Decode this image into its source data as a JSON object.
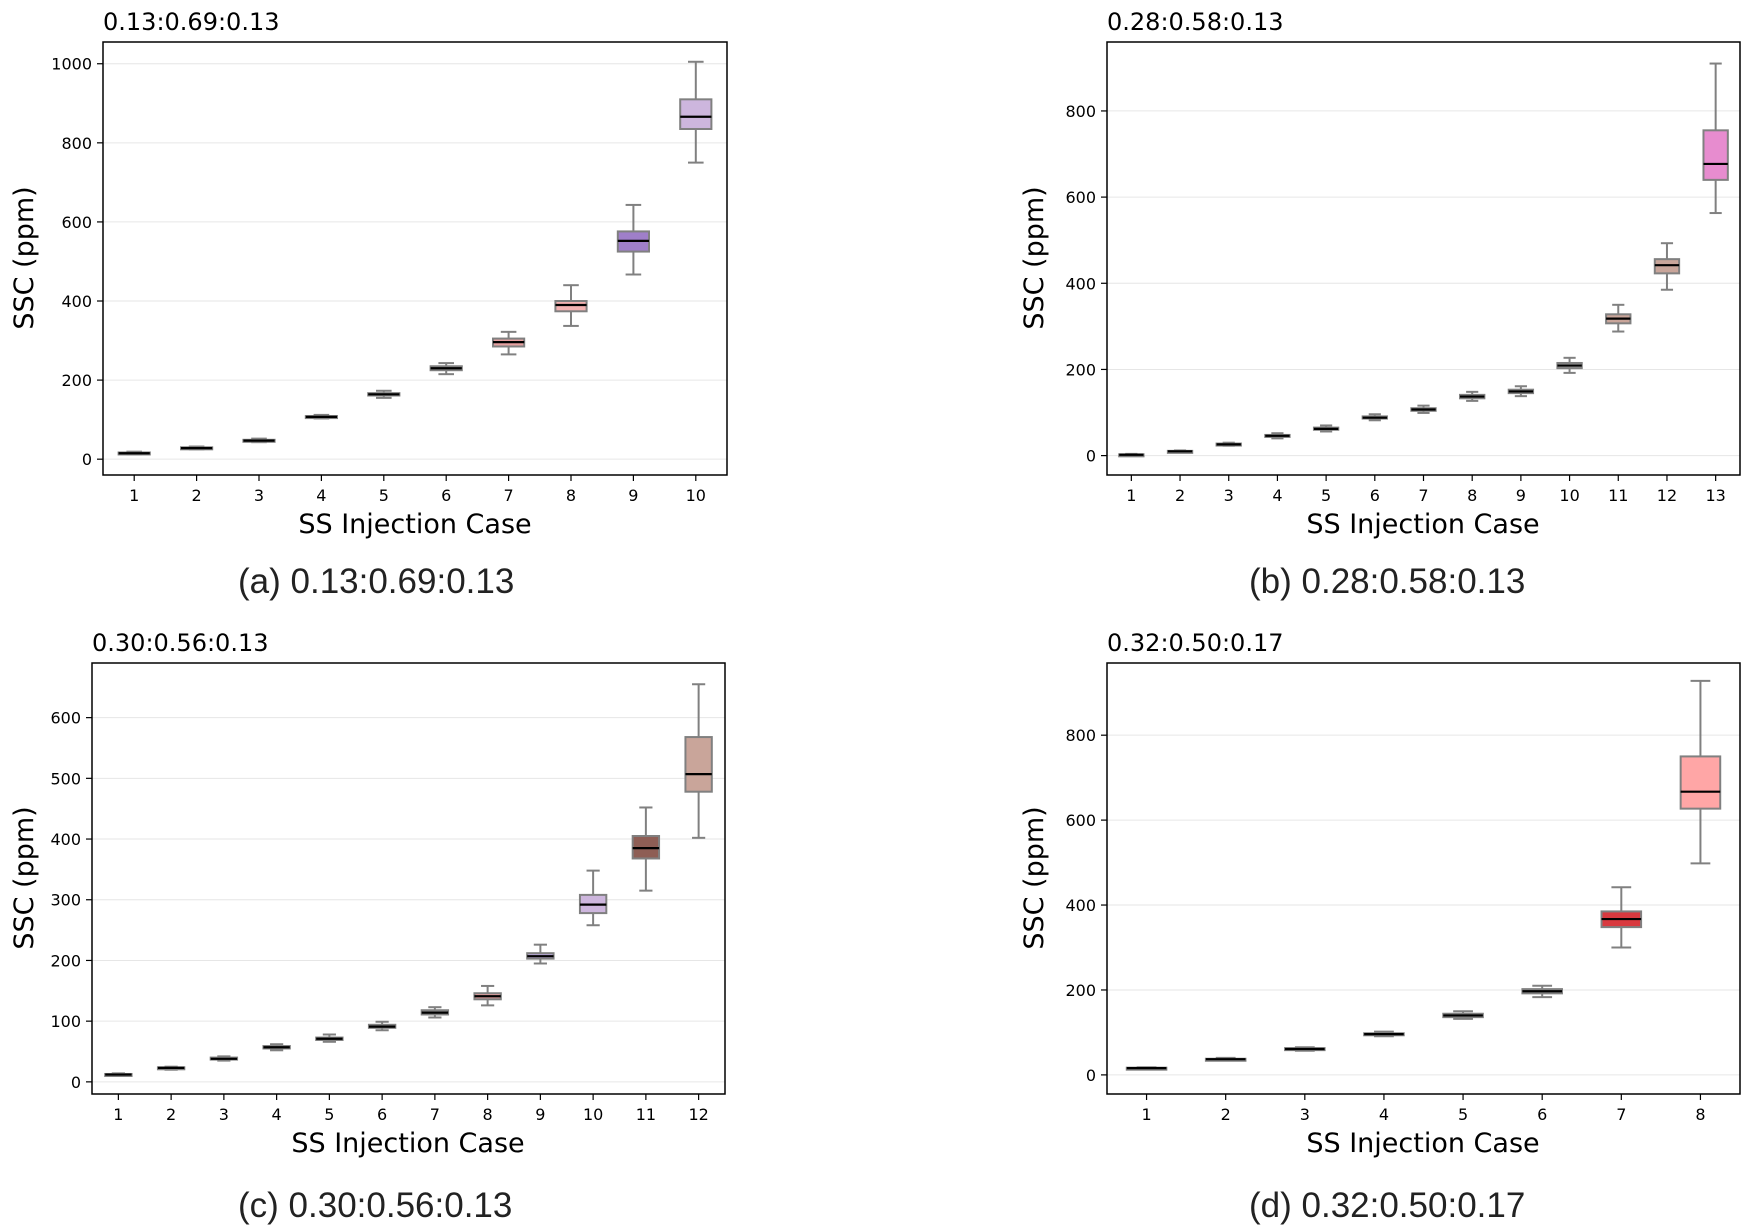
{
  "colors": {
    "whisker": "#808080",
    "median": "#000000",
    "grid": "#e6e6e6",
    "axis": "#000000"
  },
  "chart_data": [
    {
      "type": "box",
      "title": "0.13:0.69:0.13",
      "caption": "(a) 0.13:0.69:0.13",
      "xlabel": "SS Injection Case",
      "ylabel": "SSC (ppm)",
      "categories": [
        "1",
        "2",
        "3",
        "4",
        "5",
        "6",
        "7",
        "8",
        "9",
        "10"
      ],
      "ylim": [
        -40,
        1055
      ],
      "yticks": [
        0,
        200,
        400,
        600,
        800,
        1000
      ],
      "grid": true,
      "boxes": [
        {
          "min": 12,
          "q1": 14,
          "median": 15,
          "q3": 17,
          "max": 19,
          "color": "#a6a6a6"
        },
        {
          "min": 25,
          "q1": 27,
          "median": 28,
          "q3": 30,
          "max": 32,
          "color": "#a6a6a6"
        },
        {
          "min": 43,
          "q1": 46,
          "median": 47,
          "q3": 49,
          "max": 52,
          "color": "#a6a6a6"
        },
        {
          "min": 103,
          "q1": 106,
          "median": 107,
          "q3": 109,
          "max": 112,
          "color": "#a6a6a6"
        },
        {
          "min": 155,
          "q1": 161,
          "median": 164,
          "q3": 167,
          "max": 173,
          "color": "#a6a6a6"
        },
        {
          "min": 215,
          "q1": 225,
          "median": 230,
          "q3": 235,
          "max": 243,
          "color": "#a6a6a6"
        },
        {
          "min": 265,
          "q1": 285,
          "median": 296,
          "q3": 305,
          "max": 322,
          "color": "#e6a0a0"
        },
        {
          "min": 337,
          "q1": 374,
          "median": 390,
          "q3": 400,
          "max": 440,
          "color": "#f4b3b3"
        },
        {
          "min": 467,
          "q1": 525,
          "median": 552,
          "q3": 576,
          "max": 643,
          "color": "#9f7fc9"
        },
        {
          "min": 750,
          "q1": 835,
          "median": 866,
          "q3": 910,
          "max": 1005,
          "color": "#cdb6dd"
        }
      ]
    },
    {
      "type": "box",
      "title": "0.28:0.58:0.13",
      "caption": "(b) 0.28:0.58:0.13",
      "xlabel": "SS Injection Case",
      "ylabel": "SSC (ppm)",
      "categories": [
        "1",
        "2",
        "3",
        "4",
        "5",
        "6",
        "7",
        "8",
        "9",
        "10",
        "11",
        "12",
        "13"
      ],
      "ylim": [
        -45,
        960
      ],
      "yticks": [
        0,
        200,
        400,
        600,
        800
      ],
      "grid": true,
      "boxes": [
        {
          "min": 0,
          "q1": 1,
          "median": 2,
          "q3": 3,
          "max": 4,
          "color": "#a6a6a6"
        },
        {
          "min": 8,
          "q1": 9,
          "median": 10,
          "q3": 11,
          "max": 12,
          "color": "#a6a6a6"
        },
        {
          "min": 23,
          "q1": 25,
          "median": 26,
          "q3": 28,
          "max": 30,
          "color": "#a6a6a6"
        },
        {
          "min": 40,
          "q1": 44,
          "median": 46,
          "q3": 48,
          "max": 52,
          "color": "#a6a6a6"
        },
        {
          "min": 56,
          "q1": 60,
          "median": 62,
          "q3": 65,
          "max": 70,
          "color": "#a6a6a6"
        },
        {
          "min": 82,
          "q1": 86,
          "median": 88,
          "q3": 91,
          "max": 96,
          "color": "#a6a6a6"
        },
        {
          "min": 99,
          "q1": 104,
          "median": 107,
          "q3": 110,
          "max": 116,
          "color": "#a6a6a6"
        },
        {
          "min": 127,
          "q1": 133,
          "median": 137,
          "q3": 141,
          "max": 148,
          "color": "#a6a6a6"
        },
        {
          "min": 138,
          "q1": 145,
          "median": 149,
          "q3": 153,
          "max": 161,
          "color": "#a6a6a6"
        },
        {
          "min": 192,
          "q1": 203,
          "median": 209,
          "q3": 215,
          "max": 227,
          "color": "#a6a6a6"
        },
        {
          "min": 288,
          "q1": 307,
          "median": 318,
          "q3": 328,
          "max": 350,
          "color": "#c9a59a"
        },
        {
          "min": 385,
          "q1": 423,
          "median": 442,
          "q3": 456,
          "max": 493,
          "color": "#c9a59a"
        },
        {
          "min": 563,
          "q1": 640,
          "median": 677,
          "q3": 755,
          "max": 910,
          "color": "#e78ccf"
        }
      ]
    },
    {
      "type": "box",
      "title": "0.30:0.56:0.13",
      "caption": "(c) 0.30:0.56:0.13",
      "xlabel": "SS Injection Case",
      "ylabel": "SSC (ppm)",
      "categories": [
        "1",
        "2",
        "3",
        "4",
        "5",
        "6",
        "7",
        "8",
        "9",
        "10",
        "11",
        "12"
      ],
      "ylim": [
        -20,
        690
      ],
      "yticks": [
        0,
        100,
        200,
        300,
        400,
        500,
        600
      ],
      "grid": true,
      "boxes": [
        {
          "min": 10,
          "q1": 12,
          "median": 12,
          "q3": 13,
          "max": 14,
          "color": "#a6a6a6"
        },
        {
          "min": 20,
          "q1": 22,
          "median": 23,
          "q3": 24,
          "max": 25,
          "color": "#a6a6a6"
        },
        {
          "min": 35,
          "q1": 37,
          "median": 38,
          "q3": 40,
          "max": 42,
          "color": "#a6a6a6"
        },
        {
          "min": 52,
          "q1": 55,
          "median": 57,
          "q3": 59,
          "max": 62,
          "color": "#a6a6a6"
        },
        {
          "min": 66,
          "q1": 69,
          "median": 71,
          "q3": 73,
          "max": 78,
          "color": "#a6a6a6"
        },
        {
          "min": 85,
          "q1": 89,
          "median": 91,
          "q3": 94,
          "max": 99,
          "color": "#a6a6a6"
        },
        {
          "min": 106,
          "q1": 111,
          "median": 114,
          "q3": 118,
          "max": 123,
          "color": "#a6a6a6"
        },
        {
          "min": 126,
          "q1": 136,
          "median": 141,
          "q3": 146,
          "max": 158,
          "color": "#e6a0a0"
        },
        {
          "min": 195,
          "q1": 203,
          "median": 207,
          "q3": 212,
          "max": 226,
          "color": "#b8a6d6"
        },
        {
          "min": 258,
          "q1": 278,
          "median": 292,
          "q3": 308,
          "max": 348,
          "color": "#cdb6dd"
        },
        {
          "min": 315,
          "q1": 368,
          "median": 385,
          "q3": 405,
          "max": 452,
          "color": "#8e5e55"
        },
        {
          "min": 402,
          "q1": 478,
          "median": 507,
          "q3": 568,
          "max": 655,
          "color": "#c9a59a"
        }
      ]
    },
    {
      "type": "box",
      "title": "0.32:0.50:0.17",
      "caption": "(d) 0.32:0.50:0.17",
      "xlabel": "SS Injection Case",
      "ylabel": "SSC (ppm)",
      "categories": [
        "1",
        "2",
        "3",
        "4",
        "5",
        "6",
        "7",
        "8"
      ],
      "ylim": [
        -45,
        970
      ],
      "yticks": [
        0,
        200,
        400,
        600,
        800
      ],
      "grid": true,
      "boxes": [
        {
          "min": 14,
          "q1": 15,
          "median": 16,
          "q3": 17,
          "max": 18,
          "color": "#a6a6a6"
        },
        {
          "min": 34,
          "q1": 36,
          "median": 37,
          "q3": 38,
          "max": 40,
          "color": "#a6a6a6"
        },
        {
          "min": 57,
          "q1": 60,
          "median": 61,
          "q3": 63,
          "max": 65,
          "color": "#a6a6a6"
        },
        {
          "min": 91,
          "q1": 94,
          "median": 96,
          "q3": 98,
          "max": 102,
          "color": "#a6a6a6"
        },
        {
          "min": 132,
          "q1": 136,
          "median": 140,
          "q3": 144,
          "max": 150,
          "color": "#a6a6a6"
        },
        {
          "min": 183,
          "q1": 192,
          "median": 197,
          "q3": 202,
          "max": 210,
          "color": "#a6a6a6"
        },
        {
          "min": 300,
          "q1": 348,
          "median": 367,
          "q3": 385,
          "max": 442,
          "color": "#d9393f"
        },
        {
          "min": 498,
          "q1": 627,
          "median": 667,
          "q3": 750,
          "max": 928,
          "color": "#ffa6a6"
        }
      ]
    }
  ]
}
